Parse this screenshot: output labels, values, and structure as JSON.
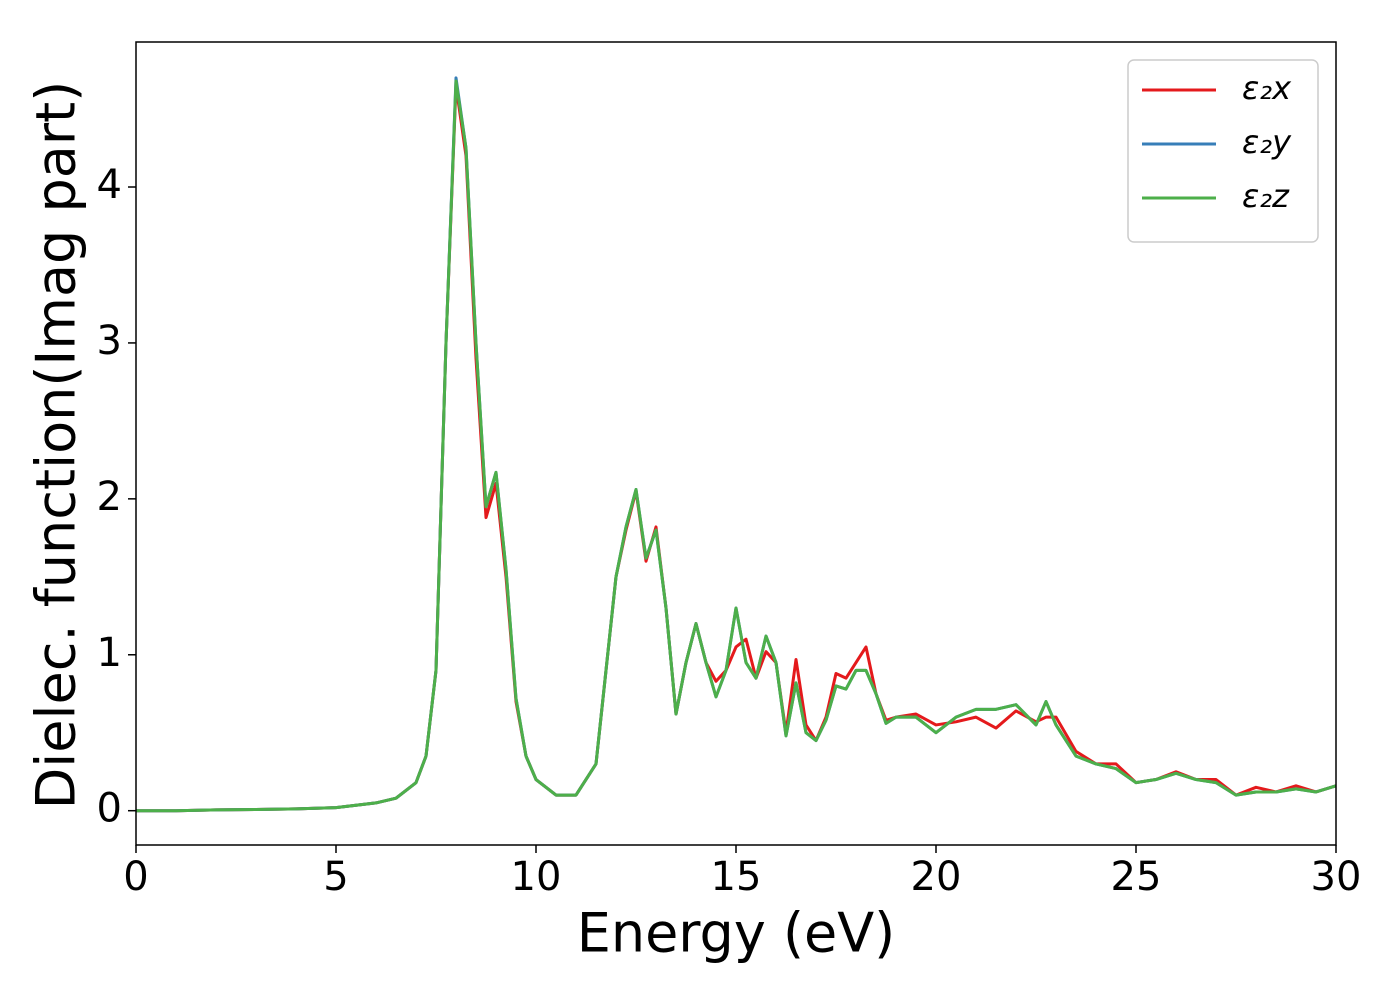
{
  "chart_data": {
    "type": "line",
    "xlabel": "Energy (eV)",
    "ylabel": "Dielec. function(Imag part)",
    "xlim": [
      0,
      30
    ],
    "xticks": [
      0,
      5,
      10,
      15,
      20,
      25,
      30
    ],
    "ylim": [
      -0.22,
      4.93
    ],
    "yticks": [
      0,
      1,
      2,
      3,
      4
    ],
    "legend": "upper right",
    "x": [
      0,
      1,
      2,
      3,
      4,
      5,
      6,
      6.5,
      7,
      7.25,
      7.5,
      7.75,
      8,
      8.25,
      8.5,
      8.75,
      9,
      9.25,
      9.5,
      9.75,
      10,
      10.5,
      11,
      11.5,
      12,
      12.25,
      12.5,
      12.75,
      13,
      13.25,
      13.5,
      13.75,
      14,
      14.25,
      14.5,
      14.75,
      15,
      15.25,
      15.5,
      15.75,
      16,
      16.25,
      16.5,
      16.75,
      17,
      17.25,
      17.5,
      17.75,
      18,
      18.25,
      18.5,
      18.75,
      19,
      19.5,
      20,
      20.5,
      21,
      21.5,
      22,
      22.5,
      22.75,
      23,
      23.5,
      24,
      24.5,
      25,
      25.5,
      26,
      26.5,
      27,
      27.5,
      28,
      28.5,
      29,
      29.5,
      30
    ],
    "series": [
      {
        "name": "ε₂x",
        "color": "#e41a1c",
        "values": [
          0,
          0,
          0.005,
          0.008,
          0.012,
          0.02,
          0.05,
          0.08,
          0.18,
          0.35,
          0.9,
          3.0,
          4.65,
          4.2,
          2.9,
          1.88,
          2.1,
          1.5,
          0.7,
          0.35,
          0.2,
          0.1,
          0.1,
          0.3,
          1.5,
          1.8,
          2.05,
          1.6,
          1.82,
          1.3,
          0.62,
          0.95,
          1.2,
          0.95,
          0.83,
          0.9,
          1.05,
          1.1,
          0.85,
          1.02,
          0.95,
          0.5,
          0.97,
          0.55,
          0.45,
          0.6,
          0.88,
          0.85,
          0.95,
          1.05,
          0.75,
          0.58,
          0.6,
          0.62,
          0.55,
          0.57,
          0.6,
          0.53,
          0.64,
          0.57,
          0.6,
          0.6,
          0.38,
          0.3,
          0.3,
          0.18,
          0.2,
          0.25,
          0.2,
          0.2,
          0.1,
          0.15,
          0.12,
          0.16,
          0.12,
          0.16
        ]
      },
      {
        "name": "ε₂y",
        "color": "#377eb8",
        "values": [
          0,
          0,
          0.005,
          0.008,
          0.012,
          0.02,
          0.05,
          0.08,
          0.18,
          0.35,
          0.9,
          3.0,
          4.7,
          4.25,
          3.0,
          1.95,
          2.17,
          1.55,
          0.72,
          0.35,
          0.2,
          0.1,
          0.1,
          0.3,
          1.5,
          1.82,
          2.06,
          1.62,
          1.8,
          1.3,
          0.62,
          0.95,
          1.2,
          0.95,
          0.73,
          0.9,
          1.3,
          0.95,
          0.85,
          1.12,
          0.95,
          0.48,
          0.82,
          0.5,
          0.45,
          0.58,
          0.8,
          0.78,
          0.9,
          0.9,
          0.75,
          0.56,
          0.6,
          0.6,
          0.5,
          0.6,
          0.65,
          0.65,
          0.68,
          0.55,
          0.7,
          0.55,
          0.35,
          0.3,
          0.27,
          0.18,
          0.2,
          0.24,
          0.2,
          0.18,
          0.1,
          0.12,
          0.12,
          0.14,
          0.12,
          0.16
        ]
      },
      {
        "name": "ε₂z",
        "color": "#4daf4a",
        "values": [
          0,
          0,
          0.005,
          0.008,
          0.012,
          0.02,
          0.05,
          0.08,
          0.18,
          0.35,
          0.9,
          3.0,
          4.68,
          4.25,
          3.0,
          1.95,
          2.17,
          1.55,
          0.72,
          0.35,
          0.2,
          0.1,
          0.1,
          0.3,
          1.5,
          1.82,
          2.06,
          1.62,
          1.8,
          1.3,
          0.62,
          0.95,
          1.2,
          0.95,
          0.73,
          0.9,
          1.3,
          0.95,
          0.85,
          1.12,
          0.95,
          0.48,
          0.82,
          0.5,
          0.45,
          0.58,
          0.8,
          0.78,
          0.9,
          0.9,
          0.75,
          0.56,
          0.6,
          0.6,
          0.5,
          0.6,
          0.65,
          0.65,
          0.68,
          0.55,
          0.7,
          0.55,
          0.35,
          0.3,
          0.27,
          0.18,
          0.2,
          0.24,
          0.2,
          0.18,
          0.1,
          0.12,
          0.12,
          0.14,
          0.12,
          0.16
        ]
      }
    ]
  }
}
